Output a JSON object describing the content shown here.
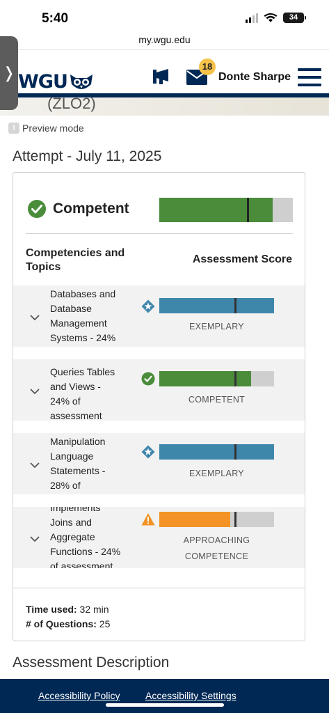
{
  "status_bar": {
    "time": "5:40",
    "battery": "34"
  },
  "browser": {
    "url": "my.wgu.edu"
  },
  "header": {
    "logo_text": "WGU",
    "mail_badge": "18",
    "user_name": "Donte Sharpe"
  },
  "course": {
    "code_fragment": "(ZLO2)"
  },
  "preview_mode": "Preview mode",
  "attempt": {
    "title": "Attempt - July 11, 2025",
    "overall": {
      "label": "Competent",
      "fill_fraction": 0.85,
      "cut_fraction": 0.66
    },
    "columns": {
      "left": "Competencies and Topics",
      "right": "Assessment Score"
    },
    "topics": [
      {
        "lines": [
          "Databases and",
          "Database",
          "Management",
          "Systems - 24%"
        ],
        "level": "EXEMPLARY",
        "level_lines": [
          "EXEMPLARY"
        ],
        "icon": "star-badge-icon",
        "color": "#3f86ab",
        "fill_fraction": 1.0,
        "cut_fraction": 0.66
      },
      {
        "lines": [
          "Queries Tables",
          "and Views -",
          "24% of",
          "assessment"
        ],
        "level": "COMPETENT",
        "level_lines": [
          "COMPETENT"
        ],
        "icon": "check-circle-icon",
        "color": "#4a8c3a",
        "fill_fraction": 0.8,
        "cut_fraction": 0.66
      },
      {
        "lines": [
          "Manipulation",
          "Language",
          "Statements -",
          "28% of"
        ],
        "level": "EXEMPLARY",
        "level_lines": [
          "EXEMPLARY"
        ],
        "icon": "star-badge-icon",
        "color": "#3f86ab",
        "fill_fraction": 1.0,
        "cut_fraction": 0.66
      },
      {
        "lines": [
          "Implements",
          "Joins and",
          "Aggregate",
          "Functions - 24%",
          "of assessment"
        ],
        "level": "APPROACHING COMPETENCE",
        "level_lines": [
          "APPROACHING",
          "COMPETENCE"
        ],
        "icon": "warning-icon",
        "color": "#f39325",
        "fill_fraction": 0.62,
        "cut_fraction": 0.66
      }
    ],
    "stats": {
      "time_label": "Time used:",
      "time_value": "32 min",
      "questions_label": "# of Questions:",
      "questions_value": "25"
    }
  },
  "description_title": "Assessment Description",
  "footer": {
    "link1": "Accessibility Policy",
    "link2": "Accessibility Settings"
  },
  "colors": {
    "navy": "#002855",
    "competent": "#4a8c3a",
    "exemplary": "#3f86ab",
    "approaching": "#f39325"
  }
}
